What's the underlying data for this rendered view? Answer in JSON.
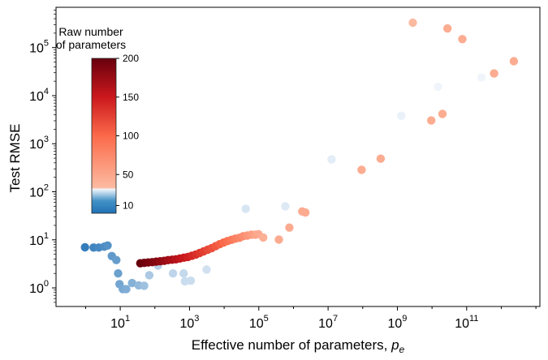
{
  "chart_data": {
    "type": "scatter",
    "xlabel": "Effective number of parameters, ",
    "xlabel_symbol": "p",
    "xlabel_subscript": "e",
    "ylabel": "Test RMSE",
    "xscale": "log",
    "yscale": "log",
    "xlim": [
      0.14,
      13000000000000.0
    ],
    "ylim": [
      0.41,
      690000.0
    ],
    "x_ticks": [
      {
        "base": "10",
        "exp": "1",
        "value": 10
      },
      {
        "base": "10",
        "exp": "3",
        "value": 1000
      },
      {
        "base": "10",
        "exp": "5",
        "value": 100000
      },
      {
        "base": "10",
        "exp": "7",
        "value": 10000000.0
      },
      {
        "base": "10",
        "exp": "9",
        "value": 1000000000.0
      },
      {
        "base": "10",
        "exp": "11",
        "value": 100000000000.0
      }
    ],
    "y_ticks": [
      {
        "base": "10",
        "exp": "0",
        "value": 1
      },
      {
        "base": "10",
        "exp": "1",
        "value": 10
      },
      {
        "base": "10",
        "exp": "2",
        "value": 100
      },
      {
        "base": "10",
        "exp": "3",
        "value": 1000
      },
      {
        "base": "10",
        "exp": "4",
        "value": 10000
      },
      {
        "base": "10",
        "exp": "5",
        "value": 100000
      }
    ],
    "grid": false,
    "colorbar": {
      "title_line1": "Raw number",
      "title_line2": "of parameters",
      "range": [
        0,
        200
      ],
      "ticks": [
        "10",
        "50",
        "100",
        "150",
        "200"
      ],
      "tick_values": [
        10,
        50,
        100,
        150,
        200
      ],
      "colormap": "Blues (low) / Reds (high)",
      "colors": {
        "blue_dark": "#2171b5",
        "blue_light": "#f0f5fb",
        "red_light": "#fcbba1",
        "red_mid": "#fb6a4a",
        "red_strong": "#cb181d",
        "red_dark": "#67000d"
      },
      "blue_threshold": 33,
      "placement": "top-left inset"
    },
    "point_fields": [
      "effective_params",
      "test_rmse",
      "raw_params"
    ],
    "points": [
      [
        0.96,
        7.0,
        3
      ],
      [
        1.7,
        6.9,
        5
      ],
      [
        2.4,
        6.9,
        6
      ],
      [
        3.5,
        7.2,
        7
      ],
      [
        4.3,
        7.6,
        8
      ],
      [
        5.7,
        4.6,
        10
      ],
      [
        7.7,
        3.8,
        11
      ],
      [
        8.7,
        2.0,
        12
      ],
      [
        9.5,
        1.2,
        13
      ],
      [
        11.9,
        0.94,
        14
      ],
      [
        14.9,
        0.94,
        15
      ],
      [
        22,
        1.26,
        16
      ],
      [
        34,
        1.13,
        18
      ],
      [
        49,
        1.11,
        20
      ],
      [
        69,
        1.84,
        22
      ],
      [
        123,
        2.9,
        24
      ],
      [
        334,
        2.0,
        25
      ],
      [
        677,
        2.0,
        26
      ],
      [
        736,
        1.37,
        27
      ],
      [
        1090,
        1.41,
        27
      ],
      [
        3120,
        2.4,
        28
      ],
      [
        42000,
        44,
        29
      ],
      [
        580000,
        50,
        30
      ],
      [
        12600000.0,
        471,
        31
      ],
      [
        1300000000.0,
        3820,
        32
      ],
      [
        15000000000.0,
        15400,
        33
      ],
      [
        270000000000.0,
        24000,
        33
      ],
      [
        2800000000.0,
        330000,
        34
      ],
      [
        93000000.0,
        287,
        45
      ],
      [
        330000000.0,
        489,
        45
      ],
      [
        9500000000.0,
        3040,
        45
      ],
      [
        20000000000.0,
        4170,
        45
      ],
      [
        28000000000.0,
        250000,
        45
      ],
      [
        75000000000.0,
        150000,
        45
      ],
      [
        620000000000.0,
        29000,
        45
      ],
      [
        2300000000000.0,
        52000,
        45
      ],
      [
        380000,
        10.1,
        46
      ],
      [
        760000,
        18,
        46
      ],
      [
        1800000.0,
        39,
        46
      ],
      [
        2200000.0,
        37,
        46
      ],
      [
        38,
        3.25,
        200
      ],
      [
        49,
        3.32,
        196
      ],
      [
        64,
        3.38,
        192
      ],
      [
        84,
        3.44,
        188
      ],
      [
        109,
        3.51,
        184
      ],
      [
        142,
        3.58,
        180
      ],
      [
        185,
        3.65,
        176
      ],
      [
        240,
        3.79,
        171
      ],
      [
        312,
        3.86,
        166
      ],
      [
        406,
        3.94,
        161
      ],
      [
        528,
        4.09,
        156
      ],
      [
        689,
        4.25,
        151
      ],
      [
        896,
        4.41,
        146
      ],
      [
        1165,
        4.67,
        141
      ],
      [
        1517,
        4.94,
        136
      ],
      [
        1974,
        5.33,
        131
      ],
      [
        2570,
        5.76,
        126
      ],
      [
        3343,
        6.21,
        121
      ],
      [
        4350,
        6.7,
        116
      ],
      [
        5660,
        7.38,
        111
      ],
      [
        7370,
        8.11,
        106
      ],
      [
        9590,
        8.75,
        100
      ],
      [
        12500,
        9.44,
        94
      ],
      [
        16200,
        10.0,
        88
      ],
      [
        21100,
        10.6,
        82
      ],
      [
        27500,
        11.0,
        76
      ],
      [
        35800,
        11.9,
        70
      ],
      [
        46600,
        12.3,
        64
      ],
      [
        60700,
        12.8,
        58
      ],
      [
        78900,
        12.8,
        52
      ],
      [
        97500,
        13.1,
        47
      ],
      [
        134000,
        11.2,
        42
      ]
    ]
  }
}
